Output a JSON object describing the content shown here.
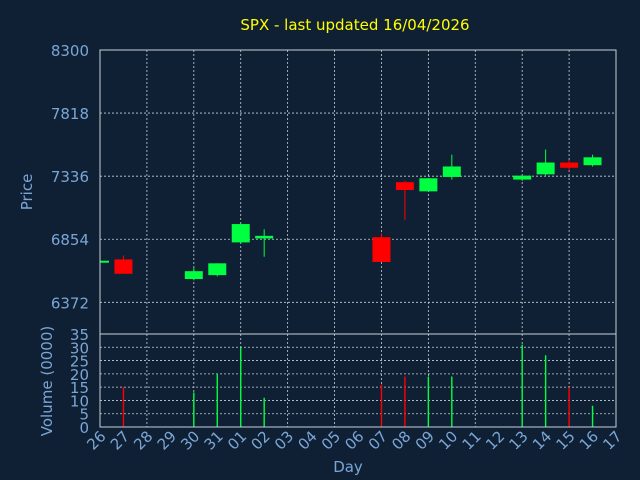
{
  "chart_data": [
    {
      "type": "candlestick",
      "title": "SPX - last updated 16/04/2026",
      "xlabel": "Day",
      "ylabel": "Price",
      "ylim": [
        6130,
        8300
      ],
      "yticks": [
        "8300",
        "7818",
        "7336",
        "6854",
        "6372"
      ],
      "grid": true,
      "colors": {
        "up": "#00ff40",
        "down": "#ff0000",
        "title": "#ffff00",
        "axis_text": "#7aa6d6",
        "background": "#0f2035",
        "grid": "#c8d0d8"
      },
      "categories": [
        "26",
        "27",
        "28",
        "29",
        "30",
        "31",
        "01",
        "02",
        "03",
        "04",
        "05",
        "06",
        "07",
        "08",
        "09",
        "10",
        "11",
        "12",
        "13",
        "14",
        "15",
        "16",
        "17"
      ],
      "candles": [
        {
          "day": "26",
          "open": 6690,
          "high": 6695,
          "low": 6685,
          "close": 6690
        },
        {
          "day": "27",
          "open": 6700,
          "high": 6730,
          "low": 6590,
          "close": 6590
        },
        {
          "day": "30",
          "open": 6550,
          "high": 6640,
          "low": 6540,
          "close": 6610
        },
        {
          "day": "31",
          "open": 6580,
          "high": 6670,
          "low": 6570,
          "close": 6670
        },
        {
          "day": "01",
          "open": 6830,
          "high": 6980,
          "low": 6820,
          "close": 6970
        },
        {
          "day": "02",
          "open": 6860,
          "high": 6930,
          "low": 6720,
          "close": 6880
        },
        {
          "day": "07",
          "open": 6870,
          "high": 6900,
          "low": 6680,
          "close": 6680
        },
        {
          "day": "08",
          "open": 7290,
          "high": 7300,
          "low": 7000,
          "close": 7230
        },
        {
          "day": "09",
          "open": 7220,
          "high": 7320,
          "low": 7220,
          "close": 7320
        },
        {
          "day": "10",
          "open": 7330,
          "high": 7500,
          "low": 7310,
          "close": 7410
        },
        {
          "day": "13",
          "open": 7310,
          "high": 7340,
          "low": 7300,
          "close": 7340
        },
        {
          "day": "14",
          "open": 7350,
          "high": 7540,
          "low": 7340,
          "close": 7440
        },
        {
          "day": "15",
          "open": 7440,
          "high": 7460,
          "low": 7380,
          "close": 7400
        },
        {
          "day": "16",
          "open": 7420,
          "high": 7500,
          "low": 7410,
          "close": 7480
        }
      ]
    },
    {
      "type": "bar",
      "xlabel": "Day",
      "ylabel": "Volume (0000)",
      "ylim": [
        0,
        35
      ],
      "yticks": [
        "0",
        "5",
        "10",
        "15",
        "20",
        "25",
        "30",
        "35"
      ],
      "grid": true,
      "volumes": [
        {
          "day": "27",
          "value": 15,
          "dir": "down"
        },
        {
          "day": "30",
          "value": 13,
          "dir": "up"
        },
        {
          "day": "31",
          "value": 20,
          "dir": "up"
        },
        {
          "day": "01",
          "value": 30,
          "dir": "up"
        },
        {
          "day": "02",
          "value": 11,
          "dir": "up"
        },
        {
          "day": "07",
          "value": 16,
          "dir": "down"
        },
        {
          "day": "08",
          "value": 19,
          "dir": "down"
        },
        {
          "day": "09",
          "value": 19,
          "dir": "up"
        },
        {
          "day": "10",
          "value": 19,
          "dir": "up"
        },
        {
          "day": "13",
          "value": 31,
          "dir": "up"
        },
        {
          "day": "14",
          "value": 27,
          "dir": "up"
        },
        {
          "day": "15",
          "value": 15,
          "dir": "down"
        },
        {
          "day": "16",
          "value": 8,
          "dir": "up"
        }
      ]
    }
  ]
}
